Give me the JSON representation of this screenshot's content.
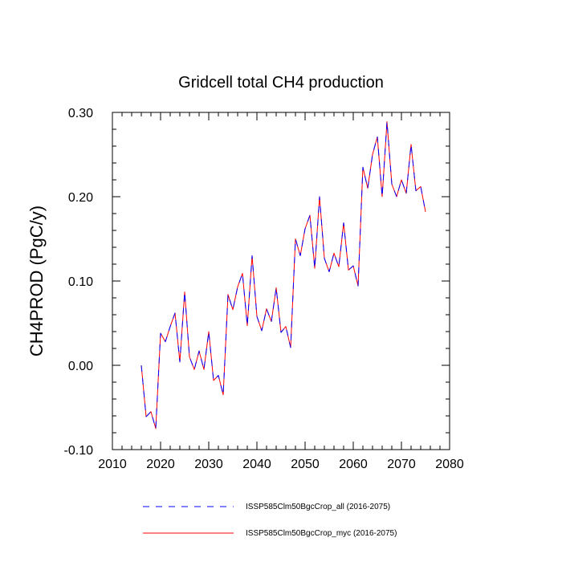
{
  "chart_data": {
    "type": "line",
    "title": "Gridcell total CH4 production",
    "xlabel": "",
    "ylabel": "CH4PROD  (PgC/y)",
    "xlim": [
      2010,
      2080
    ],
    "ylim": [
      -0.1,
      0.3
    ],
    "x_ticks": [
      2010,
      2020,
      2030,
      2040,
      2050,
      2060,
      2070,
      2080
    ],
    "y_ticks": [
      -0.1,
      0.0,
      0.1,
      0.2,
      0.3
    ],
    "x_tick_labels": [
      "2010",
      "2020",
      "2030",
      "2040",
      "2050",
      "2060",
      "2070",
      "2080"
    ],
    "y_tick_labels": [
      "-0.10",
      "0.00",
      "0.10",
      "0.20",
      "0.30"
    ],
    "grid": false,
    "legend_position": "bottom",
    "x": [
      2016,
      2017,
      2018,
      2019,
      2020,
      2021,
      2022,
      2023,
      2024,
      2025,
      2026,
      2027,
      2028,
      2029,
      2030,
      2031,
      2032,
      2033,
      2034,
      2035,
      2036,
      2037,
      2038,
      2039,
      2040,
      2041,
      2042,
      2043,
      2044,
      2045,
      2046,
      2047,
      2048,
      2049,
      2050,
      2051,
      2052,
      2053,
      2054,
      2055,
      2056,
      2057,
      2058,
      2059,
      2060,
      2061,
      2062,
      2063,
      2064,
      2065,
      2066,
      2067,
      2068,
      2069,
      2070,
      2071,
      2072,
      2073,
      2074,
      2075
    ],
    "series": [
      {
        "name": "ISSP585Clm50BgcCrop_all (2016-2075)",
        "color": "#0000ff",
        "style": "dashed",
        "values": [
          0.0,
          -0.061,
          -0.055,
          -0.075,
          0.038,
          0.028,
          0.046,
          0.062,
          0.004,
          0.087,
          0.01,
          -0.005,
          0.017,
          -0.005,
          0.04,
          -0.018,
          -0.012,
          -0.035,
          0.084,
          0.066,
          0.093,
          0.109,
          0.047,
          0.13,
          0.058,
          0.041,
          0.067,
          0.052,
          0.092,
          0.039,
          0.046,
          0.021,
          0.15,
          0.13,
          0.162,
          0.178,
          0.115,
          0.2,
          0.127,
          0.111,
          0.133,
          0.117,
          0.169,
          0.113,
          0.118,
          0.094,
          0.235,
          0.21,
          0.25,
          0.271,
          0.2,
          0.289,
          0.215,
          0.2,
          0.22,
          0.204,
          0.262,
          0.207,
          0.212,
          0.182
        ]
      },
      {
        "name": "ISSP585Clm50BgcCrop_myc (2016-2075)",
        "color": "#ff0000",
        "style": "solid",
        "values": [
          0.0,
          -0.061,
          -0.055,
          -0.075,
          0.038,
          0.028,
          0.046,
          0.062,
          0.004,
          0.087,
          0.01,
          -0.005,
          0.017,
          -0.005,
          0.04,
          -0.018,
          -0.012,
          -0.035,
          0.084,
          0.066,
          0.093,
          0.109,
          0.047,
          0.13,
          0.058,
          0.041,
          0.067,
          0.052,
          0.092,
          0.039,
          0.046,
          0.021,
          0.15,
          0.13,
          0.162,
          0.178,
          0.115,
          0.2,
          0.127,
          0.111,
          0.133,
          0.117,
          0.169,
          0.113,
          0.118,
          0.094,
          0.235,
          0.21,
          0.25,
          0.271,
          0.2,
          0.289,
          0.215,
          0.2,
          0.22,
          0.204,
          0.262,
          0.207,
          0.212,
          0.182
        ]
      }
    ]
  }
}
